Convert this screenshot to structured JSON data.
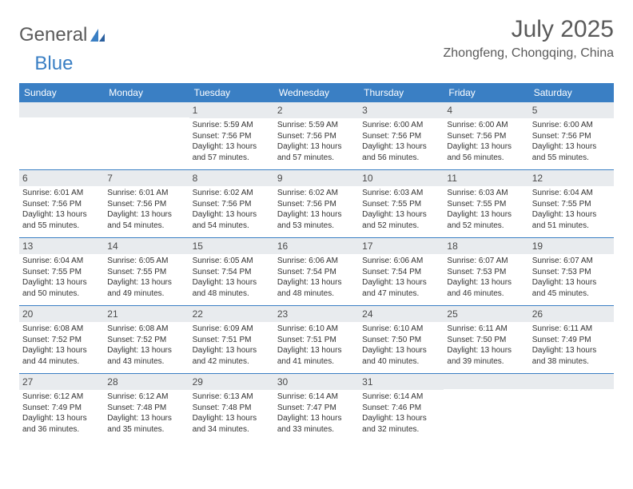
{
  "logo": {
    "text1": "General",
    "text2": "Blue"
  },
  "title": "July 2025",
  "location": "Zhongfeng, Chongqing, China",
  "header_bg": "#3a7fc4",
  "weekdays": [
    "Sunday",
    "Monday",
    "Tuesday",
    "Wednesday",
    "Thursday",
    "Friday",
    "Saturday"
  ],
  "leading_blanks": 2,
  "days": [
    {
      "n": 1,
      "sr": "5:59 AM",
      "ss": "7:56 PM",
      "dl": "13 hours and 57 minutes."
    },
    {
      "n": 2,
      "sr": "5:59 AM",
      "ss": "7:56 PM",
      "dl": "13 hours and 57 minutes."
    },
    {
      "n": 3,
      "sr": "6:00 AM",
      "ss": "7:56 PM",
      "dl": "13 hours and 56 minutes."
    },
    {
      "n": 4,
      "sr": "6:00 AM",
      "ss": "7:56 PM",
      "dl": "13 hours and 56 minutes."
    },
    {
      "n": 5,
      "sr": "6:00 AM",
      "ss": "7:56 PM",
      "dl": "13 hours and 55 minutes."
    },
    {
      "n": 6,
      "sr": "6:01 AM",
      "ss": "7:56 PM",
      "dl": "13 hours and 55 minutes."
    },
    {
      "n": 7,
      "sr": "6:01 AM",
      "ss": "7:56 PM",
      "dl": "13 hours and 54 minutes."
    },
    {
      "n": 8,
      "sr": "6:02 AM",
      "ss": "7:56 PM",
      "dl": "13 hours and 54 minutes."
    },
    {
      "n": 9,
      "sr": "6:02 AM",
      "ss": "7:56 PM",
      "dl": "13 hours and 53 minutes."
    },
    {
      "n": 10,
      "sr": "6:03 AM",
      "ss": "7:55 PM",
      "dl": "13 hours and 52 minutes."
    },
    {
      "n": 11,
      "sr": "6:03 AM",
      "ss": "7:55 PM",
      "dl": "13 hours and 52 minutes."
    },
    {
      "n": 12,
      "sr": "6:04 AM",
      "ss": "7:55 PM",
      "dl": "13 hours and 51 minutes."
    },
    {
      "n": 13,
      "sr": "6:04 AM",
      "ss": "7:55 PM",
      "dl": "13 hours and 50 minutes."
    },
    {
      "n": 14,
      "sr": "6:05 AM",
      "ss": "7:55 PM",
      "dl": "13 hours and 49 minutes."
    },
    {
      "n": 15,
      "sr": "6:05 AM",
      "ss": "7:54 PM",
      "dl": "13 hours and 48 minutes."
    },
    {
      "n": 16,
      "sr": "6:06 AM",
      "ss": "7:54 PM",
      "dl": "13 hours and 48 minutes."
    },
    {
      "n": 17,
      "sr": "6:06 AM",
      "ss": "7:54 PM",
      "dl": "13 hours and 47 minutes."
    },
    {
      "n": 18,
      "sr": "6:07 AM",
      "ss": "7:53 PM",
      "dl": "13 hours and 46 minutes."
    },
    {
      "n": 19,
      "sr": "6:07 AM",
      "ss": "7:53 PM",
      "dl": "13 hours and 45 minutes."
    },
    {
      "n": 20,
      "sr": "6:08 AM",
      "ss": "7:52 PM",
      "dl": "13 hours and 44 minutes."
    },
    {
      "n": 21,
      "sr": "6:08 AM",
      "ss": "7:52 PM",
      "dl": "13 hours and 43 minutes."
    },
    {
      "n": 22,
      "sr": "6:09 AM",
      "ss": "7:51 PM",
      "dl": "13 hours and 42 minutes."
    },
    {
      "n": 23,
      "sr": "6:10 AM",
      "ss": "7:51 PM",
      "dl": "13 hours and 41 minutes."
    },
    {
      "n": 24,
      "sr": "6:10 AM",
      "ss": "7:50 PM",
      "dl": "13 hours and 40 minutes."
    },
    {
      "n": 25,
      "sr": "6:11 AM",
      "ss": "7:50 PM",
      "dl": "13 hours and 39 minutes."
    },
    {
      "n": 26,
      "sr": "6:11 AM",
      "ss": "7:49 PM",
      "dl": "13 hours and 38 minutes."
    },
    {
      "n": 27,
      "sr": "6:12 AM",
      "ss": "7:49 PM",
      "dl": "13 hours and 36 minutes."
    },
    {
      "n": 28,
      "sr": "6:12 AM",
      "ss": "7:48 PM",
      "dl": "13 hours and 35 minutes."
    },
    {
      "n": 29,
      "sr": "6:13 AM",
      "ss": "7:48 PM",
      "dl": "13 hours and 34 minutes."
    },
    {
      "n": 30,
      "sr": "6:14 AM",
      "ss": "7:47 PM",
      "dl": "13 hours and 33 minutes."
    },
    {
      "n": 31,
      "sr": "6:14 AM",
      "ss": "7:46 PM",
      "dl": "13 hours and 32 minutes."
    }
  ],
  "labels": {
    "sunrise": "Sunrise:",
    "sunset": "Sunset:",
    "daylight": "Daylight:"
  }
}
